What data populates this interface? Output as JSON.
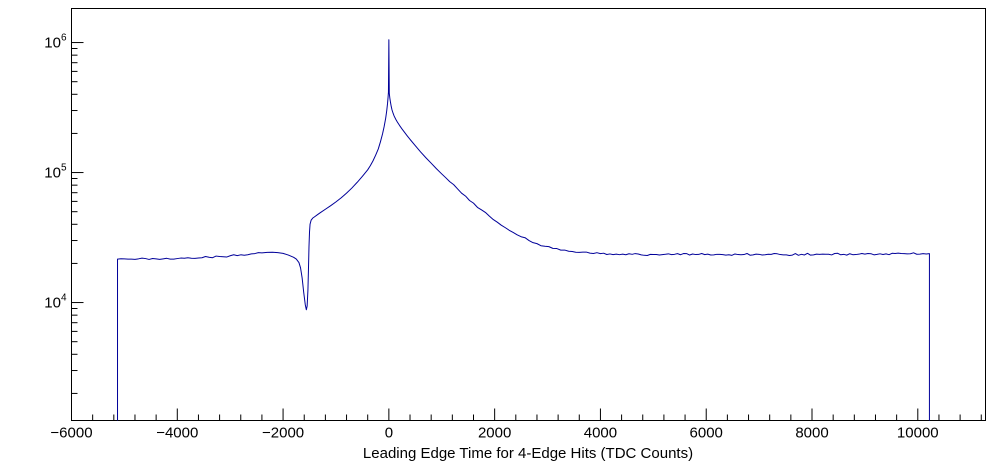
{
  "chart_data": {
    "type": "line",
    "title": "",
    "xlabel": "Leading Edge Time for 4-Edge Hits (TDC Counts)",
    "ylabel": "",
    "legend": "none",
    "grid": false,
    "x_axis": {
      "lim": [
        -6000,
        11280
      ],
      "major_ticks": [
        {
          "v": -6000,
          "label": "−6000"
        },
        {
          "v": -4000,
          "label": "−4000"
        },
        {
          "v": -2000,
          "label": "−2000"
        },
        {
          "v": 0,
          "label": "0"
        },
        {
          "v": 2000,
          "label": "2000"
        },
        {
          "v": 4000,
          "label": "4000"
        },
        {
          "v": 6000,
          "label": "6000"
        },
        {
          "v": 8000,
          "label": "8000"
        },
        {
          "v": 10000,
          "label": "10000"
        }
      ],
      "minor_step": 400
    },
    "y_axis": {
      "scale": "log",
      "lim": [
        1238,
        1828000
      ],
      "major_ticks": [
        {
          "v": 10000,
          "base": "10",
          "exp": "4"
        },
        {
          "v": 100000,
          "base": "10",
          "exp": "5"
        },
        {
          "v": 1000000,
          "base": "10",
          "exp": "6"
        }
      ],
      "minor_multiples": [
        2,
        3,
        4,
        5,
        6,
        7,
        8,
        9
      ]
    },
    "style": {
      "line_color": "#000099",
      "axis_color": "#000000",
      "background": "#ffffff",
      "noise_log10": 0.008
    },
    "series": [
      {
        "name": "Leading Edge Time for 4-Edge Hits",
        "points": [
          [
            -5130,
            1238
          ],
          [
            -5130,
            21600
          ],
          [
            -5000,
            21700
          ],
          [
            -4800,
            21500
          ],
          [
            -4600,
            21800
          ],
          [
            -4400,
            21700
          ],
          [
            -4200,
            21900
          ],
          [
            -4000,
            21800
          ],
          [
            -3800,
            22100
          ],
          [
            -3600,
            22000
          ],
          [
            -3400,
            22300
          ],
          [
            -3200,
            22600
          ],
          [
            -3000,
            22900
          ],
          [
            -2800,
            23300
          ],
          [
            -2600,
            23700
          ],
          [
            -2400,
            24100
          ],
          [
            -2300,
            24300
          ],
          [
            -2200,
            24400
          ],
          [
            -2100,
            24200
          ],
          [
            -2000,
            23900
          ],
          [
            -1900,
            23200
          ],
          [
            -1800,
            22300
          ],
          [
            -1750,
            21600
          ],
          [
            -1700,
            20300
          ],
          [
            -1670,
            18500
          ],
          [
            -1640,
            15500
          ],
          [
            -1610,
            12000
          ],
          [
            -1580,
            9600
          ],
          [
            -1560,
            8800
          ],
          [
            -1545,
            9400
          ],
          [
            -1530,
            12500
          ],
          [
            -1520,
            18000
          ],
          [
            -1510,
            27000
          ],
          [
            -1500,
            35000
          ],
          [
            -1490,
            40000
          ],
          [
            -1470,
            43000
          ],
          [
            -1440,
            44600
          ],
          [
            -1400,
            45800
          ],
          [
            -1350,
            47400
          ],
          [
            -1300,
            49000
          ],
          [
            -1200,
            52200
          ],
          [
            -1100,
            55600
          ],
          [
            -1000,
            59500
          ],
          [
            -900,
            64000
          ],
          [
            -800,
            69500
          ],
          [
            -700,
            76000
          ],
          [
            -600,
            84000
          ],
          [
            -500,
            93500
          ],
          [
            -400,
            105000
          ],
          [
            -350,
            113000
          ],
          [
            -300,
            123000
          ],
          [
            -250,
            136000
          ],
          [
            -200,
            152000
          ],
          [
            -160,
            172000
          ],
          [
            -120,
            198000
          ],
          [
            -90,
            225000
          ],
          [
            -60,
            262000
          ],
          [
            -40,
            300000
          ],
          [
            -25,
            340000
          ],
          [
            -15,
            380000
          ],
          [
            -8,
            415000
          ],
          [
            0,
            1050000
          ],
          [
            8,
            408000
          ],
          [
            18,
            375000
          ],
          [
            30,
            348000
          ],
          [
            45,
            322000
          ],
          [
            60,
            303000
          ],
          [
            80,
            286000
          ],
          [
            100,
            272000
          ],
          [
            130,
            257000
          ],
          [
            160,
            245000
          ],
          [
            200,
            231000
          ],
          [
            250,
            216000
          ],
          [
            300,
            203000
          ],
          [
            350,
            191000
          ],
          [
            400,
            180000
          ],
          [
            500,
            161000
          ],
          [
            600,
            144000
          ],
          [
            700,
            130000
          ],
          [
            800,
            118000
          ],
          [
            900,
            107000
          ],
          [
            1000,
            97600
          ],
          [
            1150,
            85200
          ],
          [
            1300,
            74800
          ],
          [
            1450,
            65900
          ],
          [
            1600,
            58200
          ],
          [
            1750,
            51700
          ],
          [
            1900,
            46200
          ],
          [
            2050,
            41500
          ],
          [
            2200,
            37700
          ],
          [
            2350,
            34600
          ],
          [
            2500,
            32100
          ],
          [
            2650,
            30000
          ],
          [
            2800,
            28400
          ],
          [
            2950,
            27100
          ],
          [
            3100,
            26100
          ],
          [
            3250,
            25300
          ],
          [
            3400,
            24800
          ],
          [
            3600,
            24300
          ],
          [
            3800,
            24000
          ],
          [
            4000,
            23800
          ],
          [
            4300,
            23600
          ],
          [
            4600,
            23500
          ],
          [
            5000,
            23400
          ],
          [
            5400,
            23500
          ],
          [
            5800,
            23400
          ],
          [
            6200,
            23500
          ],
          [
            6600,
            23400
          ],
          [
            7000,
            23500
          ],
          [
            7400,
            23400
          ],
          [
            7800,
            23500
          ],
          [
            8200,
            23600
          ],
          [
            8600,
            23500
          ],
          [
            9000,
            23600
          ],
          [
            9400,
            23700
          ],
          [
            9800,
            23700
          ],
          [
            10100,
            23800
          ],
          [
            10220,
            23800
          ],
          [
            10220,
            1238
          ]
        ]
      }
    ]
  }
}
